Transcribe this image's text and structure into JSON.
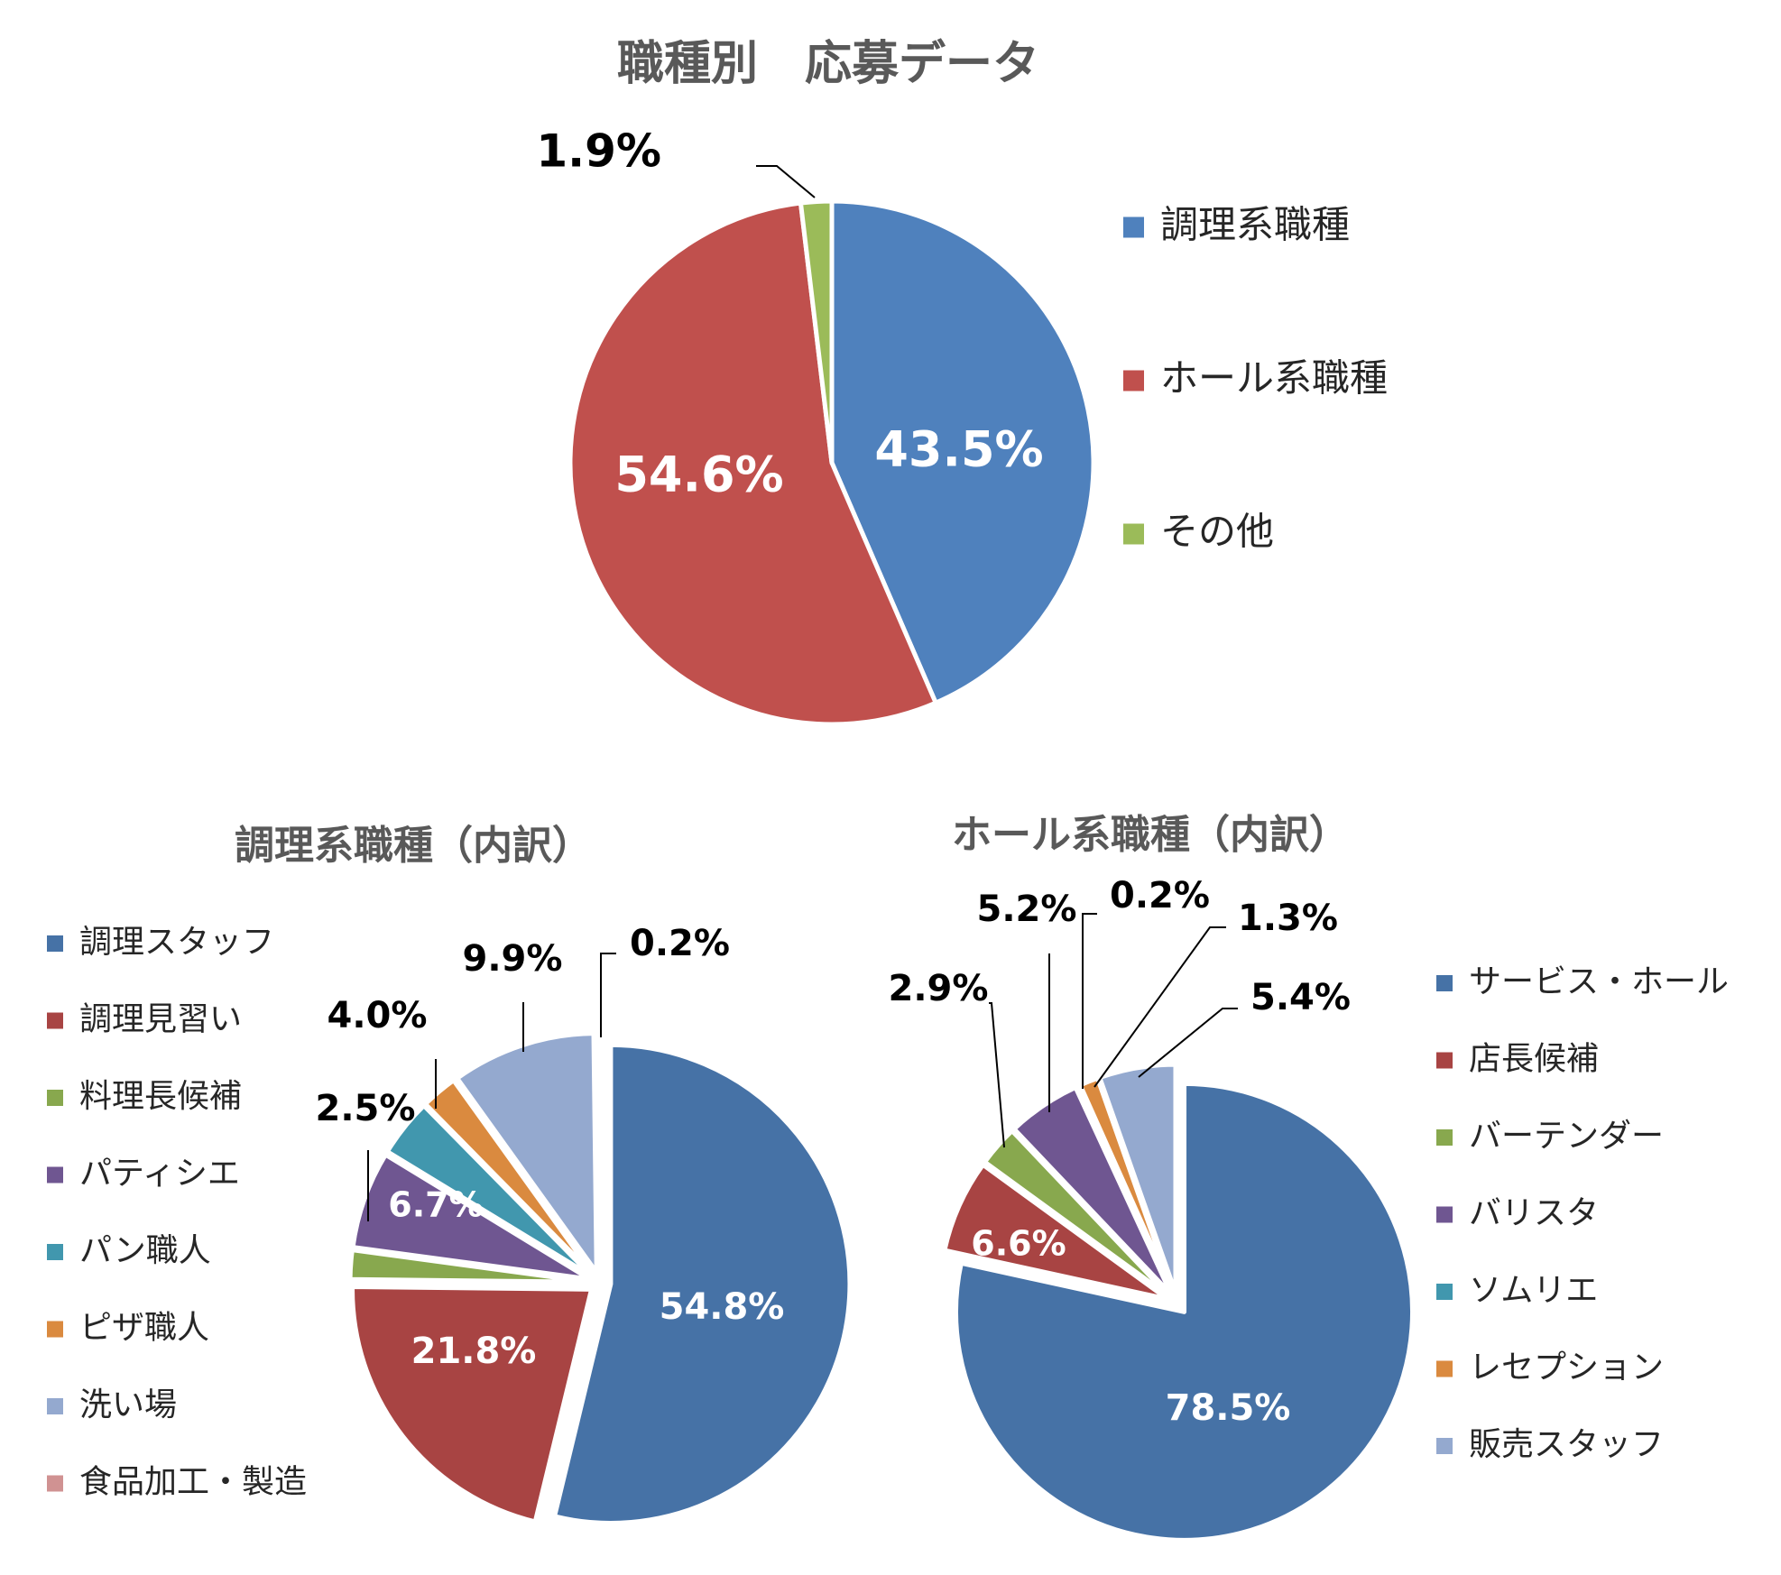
{
  "chart_data": [
    {
      "type": "pie",
      "title": "職種別　応募データ",
      "categories": [
        "調理系職種",
        "ホール系職種",
        "その他"
      ],
      "values": [
        43.5,
        54.6,
        1.9
      ],
      "data_labels": [
        "43.5%",
        "54.6%",
        "1.9%"
      ],
      "colors": [
        "#4F81BD",
        "#C0504D",
        "#9BBB59"
      ],
      "legend_position": "right"
    },
    {
      "type": "pie",
      "title": "調理系職種（内訳）",
      "categories": [
        "調理スタッフ",
        "調理見習い",
        "料理長候補",
        "パティシエ",
        "パン職人",
        "ピザ職人",
        "洗い場",
        "食品加工・製造"
      ],
      "values": [
        54.8,
        21.8,
        2.0,
        6.7,
        4.0,
        2.5,
        9.9,
        0.2
      ],
      "data_labels": [
        "54.8%",
        "21.8%",
        "",
        "6.7%",
        "4.0%",
        "2.5%",
        "9.9%",
        "0.2%"
      ],
      "colors": [
        "#4672A6",
        "#A84443",
        "#88A84E",
        "#6F5691",
        "#4197AE",
        "#DA8A3F",
        "#94A9CF",
        "#D09292"
      ],
      "legend_position": "left"
    },
    {
      "type": "pie",
      "title": "ホール系職種（内訳）",
      "categories": [
        "サービス・ホール",
        "店長候補",
        "バーテンダー",
        "バリスタ",
        "ソムリエ",
        "レセプション",
        "販売スタッフ"
      ],
      "values": [
        78.5,
        6.6,
        2.9,
        5.2,
        0.2,
        1.3,
        5.4
      ],
      "data_labels": [
        "78.5%",
        "6.6%",
        "2.9%",
        "5.2%",
        "0.2%",
        "1.3%",
        "5.4%"
      ],
      "colors": [
        "#4672A6",
        "#A84443",
        "#88A84E",
        "#6F5691",
        "#4197AE",
        "#DA8A3F",
        "#94A9CF"
      ],
      "legend_position": "right"
    }
  ]
}
